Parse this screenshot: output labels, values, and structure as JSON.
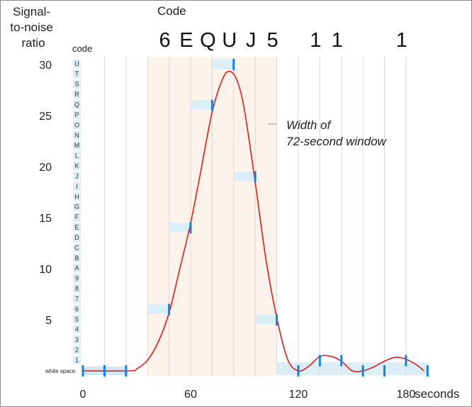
{
  "chart_data": {
    "type": "line",
    "ylabel": [
      "Signal-",
      "to-noise",
      "ratio"
    ],
    "xlabel": "seconds",
    "code_header": "Code",
    "code_column_label": "code",
    "white_space_label": "white space",
    "annotation": [
      "Width of",
      "72-second window"
    ],
    "xlim": [
      0,
      184
    ],
    "ylim": [
      0,
      31.5
    ],
    "x_ticks": [
      0,
      60,
      120,
      180
    ],
    "y_ticks": [
      5,
      10,
      15,
      20,
      25,
      30
    ],
    "code_levels": [
      "1",
      "2",
      "3",
      "4",
      "5",
      "6",
      "7",
      "8",
      "9",
      "A",
      "B",
      "C",
      "D",
      "E",
      "F",
      "G",
      "H",
      "I",
      "J",
      "K",
      "L",
      "M",
      "N",
      "O",
      "P",
      "Q",
      "R",
      "S",
      "T",
      "U"
    ],
    "window": {
      "start": 36,
      "end": 108,
      "width_seconds": 72
    },
    "decoded": [
      {
        "char": "6",
        "x": 48
      },
      {
        "char": "E",
        "x": 60
      },
      {
        "char": "Q",
        "x": 72
      },
      {
        "char": "U",
        "x": 84
      },
      {
        "char": "J",
        "x": 96
      },
      {
        "char": "5",
        "x": 108
      },
      {
        "char": "1",
        "x": 132
      },
      {
        "char": "1",
        "x": 144
      },
      {
        "char": "1",
        "x": 180
      }
    ],
    "series": [
      {
        "values_x": [
          0,
          26,
          30,
          36,
          42,
          48,
          54,
          60,
          66,
          72,
          78,
          82,
          86,
          90,
          96,
          102,
          108,
          114,
          120,
          126,
          132,
          138,
          144,
          150,
          156,
          162,
          168,
          174,
          180,
          186,
          190
        ],
        "values_y": [
          0,
          0,
          0.2,
          1.1,
          3,
          6,
          10.6,
          15.3,
          21,
          26.8,
          30.3,
          31,
          30,
          27,
          19.5,
          11.5,
          5.5,
          1.2,
          0,
          0.5,
          1.5,
          1.5,
          1,
          0,
          0,
          0.4,
          1,
          1.4,
          1.2,
          0.6,
          0
        ]
      }
    ],
    "samples": [
      {
        "x": 0,
        "y": 0
      },
      {
        "x": 12,
        "y": 0
      },
      {
        "x": 24,
        "y": 0
      },
      {
        "x": 48,
        "y": 6
      },
      {
        "x": 60,
        "y": 14
      },
      {
        "x": 72,
        "y": 26
      },
      {
        "x": 84,
        "y": 30
      },
      {
        "x": 96,
        "y": 19
      },
      {
        "x": 108,
        "y": 5
      },
      {
        "x": 120,
        "y": 0
      },
      {
        "x": 132,
        "y": 1
      },
      {
        "x": 144,
        "y": 1
      },
      {
        "x": 156,
        "y": 0
      },
      {
        "x": 168,
        "y": 0
      },
      {
        "x": 180,
        "y": 1
      },
      {
        "x": 192,
        "y": 0
      }
    ],
    "colors": {
      "curve": "#e11d1d",
      "window_fill": "#fdf3ea",
      "sample_tick": "#1583e0",
      "sample_box": "#d9eef6",
      "grid": "#d9d9d9",
      "code_box": "#d9eef6",
      "baseline": "#cfe8f3"
    }
  }
}
